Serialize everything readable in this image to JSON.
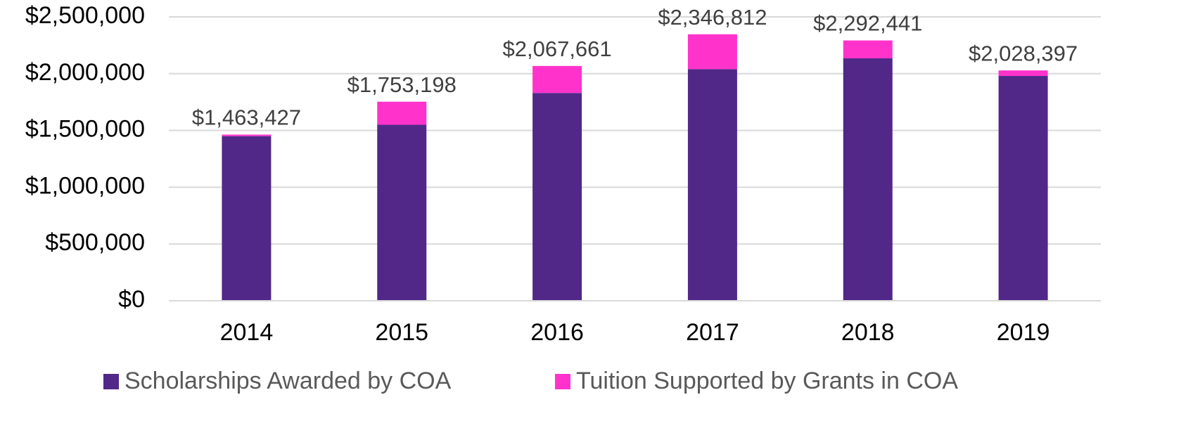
{
  "chart_data": {
    "type": "stacked_bar",
    "categories": [
      "2014",
      "2015",
      "2016",
      "2017",
      "2018",
      "2019"
    ],
    "series": [
      {
        "name": "Scholarships Awarded by COA",
        "color": "#512888",
        "values": [
          1450000,
          1550000,
          1830000,
          2040000,
          2135000,
          1980000
        ]
      },
      {
        "name": "Tuition Supported by Grants in COA",
        "color": "#ff33cc",
        "values": [
          13427,
          203198,
          237661,
          306812,
          157441,
          48397
        ]
      }
    ],
    "totals": [
      1463427,
      1753198,
      2067661,
      2346812,
      2292441,
      2028397
    ],
    "total_labels": [
      "$1,463,427",
      "$1,753,198",
      "$2,067,661",
      "$2,346,812",
      "$2,292,441",
      "$2,028,397"
    ],
    "ylim": [
      0,
      2500000
    ],
    "yticks": [
      {
        "value": 0,
        "label": "$0"
      },
      {
        "value": 500000,
        "label": "$500,000"
      },
      {
        "value": 1000000,
        "label": "$1,000,000"
      },
      {
        "value": 1500000,
        "label": "$1,500,000"
      },
      {
        "value": 2000000,
        "label": "$2,000,000"
      },
      {
        "value": 2500000,
        "label": "$2,500,000"
      }
    ],
    "grid": true,
    "legend": "bottom"
  }
}
